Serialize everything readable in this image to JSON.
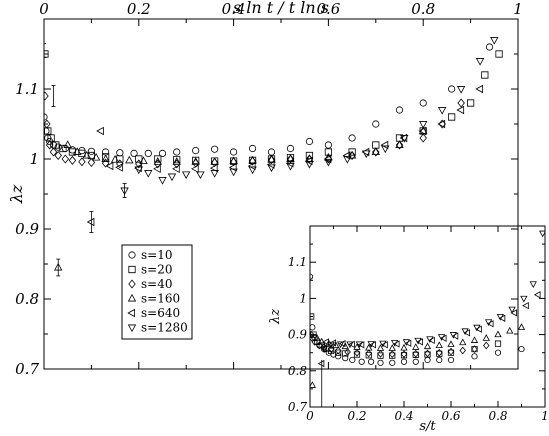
{
  "chart_data": [
    {
      "type": "scatter",
      "title": "",
      "xlabel": "s ln t / t ln s",
      "ylabel": "λz",
      "xlim": [
        0,
        1
      ],
      "ylim": [
        0.7,
        1.2
      ],
      "xticks": [
        "0",
        "0.2",
        "0.4",
        "0.6",
        "0.8",
        "1"
      ],
      "yticks": [
        "0.7",
        "0.8",
        "0.9",
        "1",
        "1.1"
      ],
      "x_axis_position": "top",
      "grid": false,
      "legend_position": "lower-left",
      "series": [
        {
          "name": "s=10",
          "marker": "circle",
          "x": [
            0.0,
            0.004,
            0.008,
            0.012,
            0.02,
            0.03,
            0.045,
            0.06,
            0.08,
            0.1,
            0.13,
            0.16,
            0.19,
            0.22,
            0.25,
            0.28,
            0.32,
            0.36,
            0.4,
            0.44,
            0.48,
            0.52,
            0.56,
            0.6,
            0.65,
            0.7,
            0.75,
            0.8,
            0.86,
            0.94
          ],
          "y": [
            1.06,
            1.04,
            1.03,
            1.025,
            1.02,
            1.017,
            1.015,
            1.013,
            1.012,
            1.011,
            1.01,
            1.009,
            1.008,
            1.008,
            1.008,
            1.01,
            1.012,
            1.014,
            1.01,
            1.015,
            1.01,
            1.015,
            1.025,
            1.02,
            1.03,
            1.05,
            1.07,
            1.08,
            1.1,
            1.16
          ]
        },
        {
          "name": "s=20",
          "marker": "square",
          "x": [
            0.002,
            0.008,
            0.015,
            0.025,
            0.04,
            0.06,
            0.08,
            0.1,
            0.13,
            0.16,
            0.2,
            0.24,
            0.28,
            0.32,
            0.36,
            0.4,
            0.44,
            0.48,
            0.52,
            0.56,
            0.6,
            0.65,
            0.7,
            0.75,
            0.8,
            0.86,
            0.9,
            0.93,
            0.96
          ],
          "y": [
            1.15,
            1.04,
            1.03,
            1.02,
            1.015,
            1.01,
            1.008,
            1.005,
            1.003,
            1.0,
            1.0,
            1.0,
            0.999,
            0.998,
            0.997,
            0.997,
            0.998,
            1.0,
            1.002,
            1.005,
            1.01,
            1.01,
            1.02,
            1.03,
            1.04,
            1.06,
            1.08,
            1.12,
            1.15
          ]
        },
        {
          "name": "s=40",
          "marker": "diamond",
          "x": [
            0.002,
            0.006,
            0.012,
            0.02,
            0.03,
            0.045,
            0.06,
            0.08,
            0.1,
            0.13,
            0.16,
            0.2,
            0.24,
            0.28,
            0.32,
            0.36,
            0.4,
            0.44,
            0.48,
            0.52,
            0.56,
            0.6,
            0.65,
            0.7,
            0.75,
            0.8,
            0.84,
            0.88
          ],
          "y": [
            1.09,
            1.05,
            1.02,
            1.01,
            1.005,
            1.0,
            0.998,
            0.996,
            0.995,
            0.994,
            0.993,
            0.993,
            0.993,
            0.993,
            0.994,
            0.995,
            0.996,
            0.997,
            0.999,
            1.0,
            1.0,
            1.0,
            1.005,
            1.01,
            1.02,
            1.03,
            1.05,
            1.08
          ]
        },
        {
          "name": "s=160",
          "marker": "triangle-up",
          "x": [
            0.03,
            0.05,
            0.07,
            0.09,
            0.11,
            0.13,
            0.15,
            0.18,
            0.21,
            0.24,
            0.28,
            0.32,
            0.36,
            0.4,
            0.44,
            0.48,
            0.52,
            0.56,
            0.6,
            0.65,
            0.7,
            0.75,
            0.8
          ],
          "y": [
            0.845,
            1.02,
            1.01,
            1.005,
            1.002,
            1.0,
            0.999,
            0.998,
            0.997,
            0.996,
            0.996,
            0.996,
            0.996,
            0.997,
            0.998,
            0.999,
            1.0,
            1.0,
            1.002,
            1.005,
            1.01,
            1.02,
            1.04
          ]
        },
        {
          "name": "s=640",
          "marker": "triangle-left",
          "x": [
            0.1,
            0.12,
            0.14,
            0.16,
            0.2,
            0.24,
            0.28,
            0.32,
            0.36,
            0.4,
            0.44,
            0.48,
            0.52,
            0.56,
            0.6,
            0.64,
            0.68,
            0.72,
            0.76,
            0.8,
            0.84,
            0.88,
            0.92
          ],
          "y": [
            0.91,
            1.04,
            0.99,
            0.988,
            0.987,
            0.986,
            0.986,
            0.986,
            0.987,
            0.988,
            0.99,
            0.992,
            0.994,
            0.997,
            1.0,
            1.005,
            1.01,
            1.02,
            1.03,
            1.04,
            1.05,
            1.07,
            1.1
          ]
        },
        {
          "name": "s=1280",
          "marker": "triangle-down",
          "x": [
            0.17,
            0.2,
            0.22,
            0.25,
            0.27,
            0.3,
            0.33,
            0.36,
            0.4,
            0.44,
            0.48,
            0.52,
            0.56,
            0.6,
            0.64,
            0.68,
            0.72,
            0.76,
            0.8,
            0.84,
            0.88,
            0.92,
            0.95
          ],
          "y": [
            0.955,
            0.985,
            0.98,
            0.97,
            0.975,
            0.978,
            0.978,
            0.98,
            0.982,
            0.985,
            0.988,
            0.99,
            0.993,
            0.996,
            1.0,
            1.008,
            1.015,
            1.03,
            1.05,
            1.07,
            1.1,
            1.14,
            1.17
          ]
        }
      ],
      "error_bars": [
        {
          "x": 0.0,
          "y": 1.155,
          "dy": 0.01
        },
        {
          "x": 0.02,
          "y": 1.09,
          "dy": 0.015
        },
        {
          "x": 0.03,
          "y": 0.845,
          "dy": 0.012
        },
        {
          "x": 0.1,
          "y": 0.91,
          "dy": 0.015
        },
        {
          "x": 0.17,
          "y": 0.955,
          "dy": 0.01
        }
      ]
    },
    {
      "type": "scatter",
      "title": "",
      "xlabel": "s/t",
      "ylabel": "λz",
      "xlim": [
        0,
        1
      ],
      "ylim": [
        0.7,
        1.2
      ],
      "xticks": [
        "0",
        "0.2",
        "0.4",
        "0.6",
        "0.8",
        "1"
      ],
      "yticks": [
        "0.7",
        "0.8",
        "0.9",
        "1",
        "1.1"
      ],
      "legend_position": "none",
      "series": [
        {
          "name": "s=10",
          "marker": "circle",
          "x": [
            0.0,
            0.01,
            0.02,
            0.04,
            0.06,
            0.08,
            0.1,
            0.12,
            0.15,
            0.18,
            0.22,
            0.26,
            0.3,
            0.35,
            0.4,
            0.45,
            0.5,
            0.55,
            0.6,
            0.7,
            0.8,
            0.9
          ],
          "y": [
            1.06,
            0.92,
            0.89,
            0.87,
            0.86,
            0.85,
            0.845,
            0.84,
            0.835,
            0.83,
            0.825,
            0.825,
            0.822,
            0.822,
            0.825,
            0.825,
            0.83,
            0.83,
            0.83,
            0.84,
            0.85,
            0.86
          ]
        },
        {
          "name": "s=20",
          "marker": "square",
          "x": [
            0.005,
            0.015,
            0.03,
            0.05,
            0.07,
            0.09,
            0.12,
            0.15,
            0.2,
            0.25,
            0.3,
            0.35,
            0.4,
            0.45,
            0.5,
            0.55,
            0.6,
            0.7,
            0.8
          ],
          "y": [
            0.95,
            0.9,
            0.88,
            0.87,
            0.86,
            0.855,
            0.85,
            0.848,
            0.845,
            0.843,
            0.842,
            0.842,
            0.843,
            0.844,
            0.845,
            0.847,
            0.85,
            0.86,
            0.875
          ]
        },
        {
          "name": "s=40",
          "marker": "diamond",
          "x": [
            0.005,
            0.01,
            0.02,
            0.04,
            0.06,
            0.09,
            0.12,
            0.16,
            0.2,
            0.25,
            0.3,
            0.35,
            0.4,
            0.45,
            0.5,
            0.55,
            0.6,
            0.65,
            0.7,
            0.75
          ],
          "y": [
            0.9,
            0.89,
            0.88,
            0.87,
            0.865,
            0.86,
            0.856,
            0.852,
            0.85,
            0.848,
            0.847,
            0.846,
            0.846,
            0.847,
            0.848,
            0.85,
            0.853,
            0.856,
            0.86,
            0.87
          ]
        },
        {
          "name": "s=160",
          "marker": "triangle-up",
          "x": [
            0.01,
            0.03,
            0.05,
            0.08,
            0.11,
            0.15,
            0.2,
            0.25,
            0.3,
            0.35,
            0.4,
            0.45,
            0.5,
            0.55,
            0.6,
            0.65,
            0.7,
            0.75,
            0.8,
            0.85,
            0.9
          ],
          "y": [
            0.76,
            0.89,
            0.88,
            0.875,
            0.87,
            0.867,
            0.865,
            0.863,
            0.862,
            0.862,
            0.863,
            0.865,
            0.867,
            0.87,
            0.873,
            0.878,
            0.884,
            0.89,
            0.9,
            0.91,
            0.92
          ]
        },
        {
          "name": "s=640",
          "marker": "triangle-left",
          "x": [
            0.05,
            0.07,
            0.1,
            0.14,
            0.18,
            0.22,
            0.27,
            0.32,
            0.37,
            0.42,
            0.47,
            0.52,
            0.57,
            0.62,
            0.67,
            0.72,
            0.77,
            0.82,
            0.87,
            0.92,
            0.97
          ],
          "y": [
            0.82,
            0.88,
            0.877,
            0.875,
            0.873,
            0.872,
            0.872,
            0.872,
            0.874,
            0.876,
            0.88,
            0.884,
            0.89,
            0.896,
            0.905,
            0.915,
            0.93,
            0.945,
            0.96,
            0.98,
            1.01
          ]
        },
        {
          "name": "s=1280",
          "marker": "triangle-down",
          "x": [
            0.06,
            0.09,
            0.13,
            0.17,
            0.21,
            0.26,
            0.31,
            0.36,
            0.41,
            0.46,
            0.51,
            0.56,
            0.61,
            0.66,
            0.71,
            0.76,
            0.81,
            0.86,
            0.91,
            0.95,
            0.99
          ],
          "y": [
            0.86,
            0.873,
            0.874,
            0.874,
            0.874,
            0.875,
            0.876,
            0.878,
            0.88,
            0.884,
            0.888,
            0.894,
            0.9,
            0.91,
            0.92,
            0.935,
            0.95,
            0.97,
            1.0,
            1.04,
            1.18
          ]
        }
      ]
    }
  ]
}
